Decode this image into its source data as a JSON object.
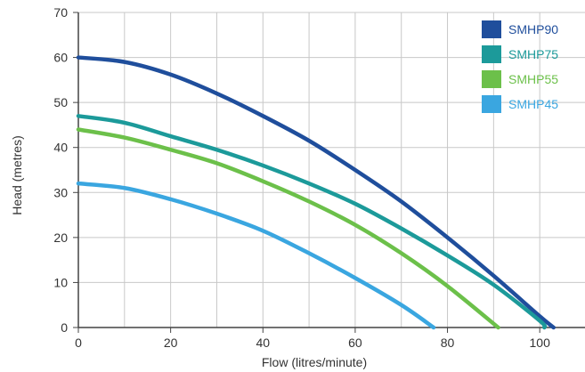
{
  "chart_data": {
    "type": "line",
    "title": "",
    "xlabel": "Flow (litres/minute)",
    "ylabel": "Head (metres)",
    "xlim": [
      0,
      110
    ],
    "ylim": [
      0,
      70
    ],
    "xticks": [
      0,
      20,
      40,
      60,
      80,
      100
    ],
    "yticks": [
      0,
      10,
      20,
      30,
      40,
      50,
      60,
      70
    ],
    "grid": true,
    "legend_position": "top-right",
    "series": [
      {
        "name": "SMHP90",
        "color": "#1f4e9c",
        "x": [
          0,
          10,
          20,
          30,
          40,
          50,
          60,
          70,
          80,
          90,
          100,
          103
        ],
        "y": [
          60,
          59,
          56.2,
          52,
          47,
          41.5,
          35,
          28,
          20,
          11.5,
          2.5,
          0
        ]
      },
      {
        "name": "SMHP75",
        "color": "#1c9a9a",
        "x": [
          0,
          10,
          20,
          30,
          40,
          50,
          60,
          70,
          80,
          90,
          100,
          101
        ],
        "y": [
          47,
          45.5,
          42.5,
          39.5,
          36,
          32,
          27.5,
          22,
          16,
          9.5,
          1.5,
          0
        ]
      },
      {
        "name": "SMHP55",
        "color": "#6cc04a",
        "x": [
          0,
          10,
          20,
          30,
          40,
          50,
          60,
          70,
          80,
          91
        ],
        "y": [
          44,
          42.2,
          39.5,
          36.5,
          32.5,
          28,
          22.8,
          16.5,
          9.2,
          0
        ]
      },
      {
        "name": "SMHP45",
        "color": "#3aa6e0",
        "x": [
          0,
          10,
          20,
          30,
          40,
          50,
          60,
          70,
          77
        ],
        "y": [
          32,
          31,
          28.5,
          25.3,
          21.5,
          16.5,
          11,
          5,
          0
        ]
      }
    ]
  }
}
